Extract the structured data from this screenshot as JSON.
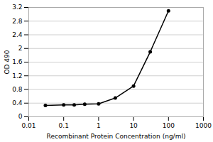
{
  "chart_data": {
    "type": "line",
    "xlabel": "Recombinant Protein Concentration (ng/ml)",
    "ylabel": "OD 490",
    "x": [
      0.03,
      0.1,
      0.2,
      0.4,
      1,
      3,
      10,
      30,
      100
    ],
    "values": [
      0.33,
      0.35,
      0.35,
      0.37,
      0.38,
      0.55,
      0.9,
      1.9,
      3.1
    ],
    "log": "x",
    "xlim": [
      0.01,
      1000
    ],
    "xticks": [
      0.01,
      0.1,
      1,
      10,
      100,
      1000
    ],
    "ylim": [
      0,
      3.2
    ],
    "yticks": [
      0,
      0.4,
      0.8,
      1.2,
      1.6,
      2,
      2.4,
      2.8,
      3.2
    ],
    "grid": "y",
    "marker": "circle"
  }
}
